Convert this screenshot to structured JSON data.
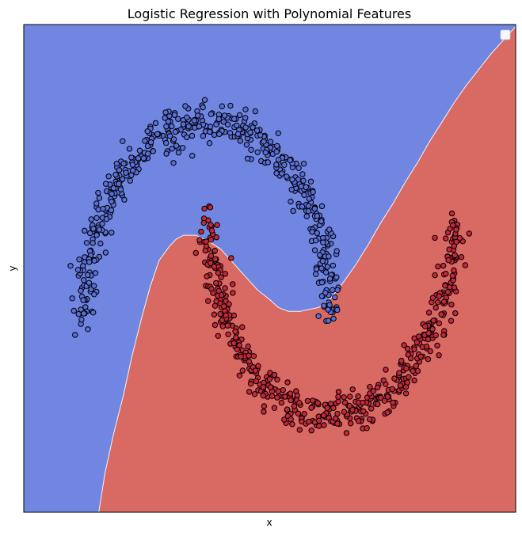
{
  "chart_data": {
    "type": "scatter",
    "title": "Logistic Regression with Polynomial Features",
    "xlabel": "x",
    "ylabel": "y",
    "xlim": [
      -1.5,
      2.5
    ],
    "ylim": [
      -1.0,
      1.5
    ],
    "ticks_visible": false,
    "grid": false,
    "legend": {
      "placement": "upper right",
      "entries": []
    },
    "regions": [
      {
        "class": 0,
        "color": "#7086e0"
      },
      {
        "class": 1,
        "color": "#d86963"
      }
    ],
    "decision_boundary": {
      "x": [
        -0.89,
        -0.84,
        -0.77,
        -0.69,
        -0.62,
        -0.54,
        -0.47,
        -0.4,
        -0.32,
        -0.26,
        -0.2,
        -0.1,
        0.0,
        0.1,
        0.2,
        0.3,
        0.4,
        0.5,
        0.57,
        0.65,
        0.75,
        0.9,
        1.0,
        1.1,
        1.2,
        1.3,
        1.4,
        1.5,
        1.6,
        1.7,
        1.8,
        1.9,
        2.0,
        2.1,
        2.2,
        2.3,
        2.4,
        2.5
      ],
      "y": [
        -1.0,
        -0.8,
        -0.6,
        -0.4,
        -0.2,
        0.0,
        0.16,
        0.29,
        0.36,
        0.4,
        0.42,
        0.42,
        0.39,
        0.35,
        0.28,
        0.21,
        0.14,
        0.09,
        0.05,
        0.03,
        0.03,
        0.05,
        0.1,
        0.18,
        0.27,
        0.37,
        0.48,
        0.58,
        0.69,
        0.79,
        0.9,
        1.0,
        1.1,
        1.19,
        1.27,
        1.35,
        1.42,
        1.49
      ]
    },
    "series": [
      {
        "class": 0,
        "color": "#5a6ed8",
        "center": [
          0.0,
          0.0
        ],
        "radius": 1.0,
        "theta_range": [
          0,
          180
        ],
        "noise": 0.05,
        "n": 500
      },
      {
        "class": 1,
        "color": "#c6283a",
        "center": [
          1.0,
          0.5
        ],
        "radius": 1.0,
        "theta_range": [
          180,
          360
        ],
        "noise": 0.05,
        "n": 500
      }
    ]
  }
}
